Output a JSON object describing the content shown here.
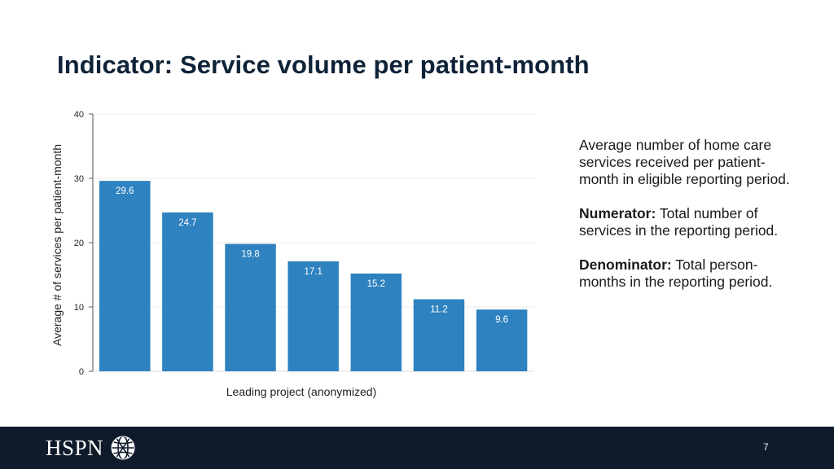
{
  "slide": {
    "title": "Indicator: Service volume per patient-month",
    "description": "Average number of home care services received per patient-month in eligible reporting period.",
    "numerator_label": "Numerator:",
    "numerator_text": "Total number of services in the reporting period.",
    "denominator_label": "Denominator:",
    "denominator_text": "Total person-months in the reporting period."
  },
  "footer": {
    "logo_text": "HSPN",
    "logo_icon": "globe-icon",
    "page_number": "7"
  },
  "colors": {
    "bar": "#2e82bf",
    "title": "#0e2338",
    "footer_bg": "#0f1b2b",
    "axis": "#555555",
    "grid": "#eeeeee"
  },
  "chart_data": {
    "type": "bar",
    "title": "",
    "xlabel": "Leading project (anonymized)",
    "ylabel": "Average # of services per patient-month",
    "categories": [
      "",
      "",
      "",
      "",
      "",
      "",
      ""
    ],
    "values": [
      29.6,
      24.7,
      19.8,
      17.1,
      15.2,
      11.2,
      9.6
    ],
    "data_labels": [
      "29.6",
      "24.7",
      "19.8",
      "17.1",
      "15.2",
      "11.2",
      "9.6"
    ],
    "ylim": [
      0,
      40
    ],
    "yticks": [
      0,
      10,
      20,
      30,
      40
    ],
    "grid": true,
    "legend": "none"
  }
}
